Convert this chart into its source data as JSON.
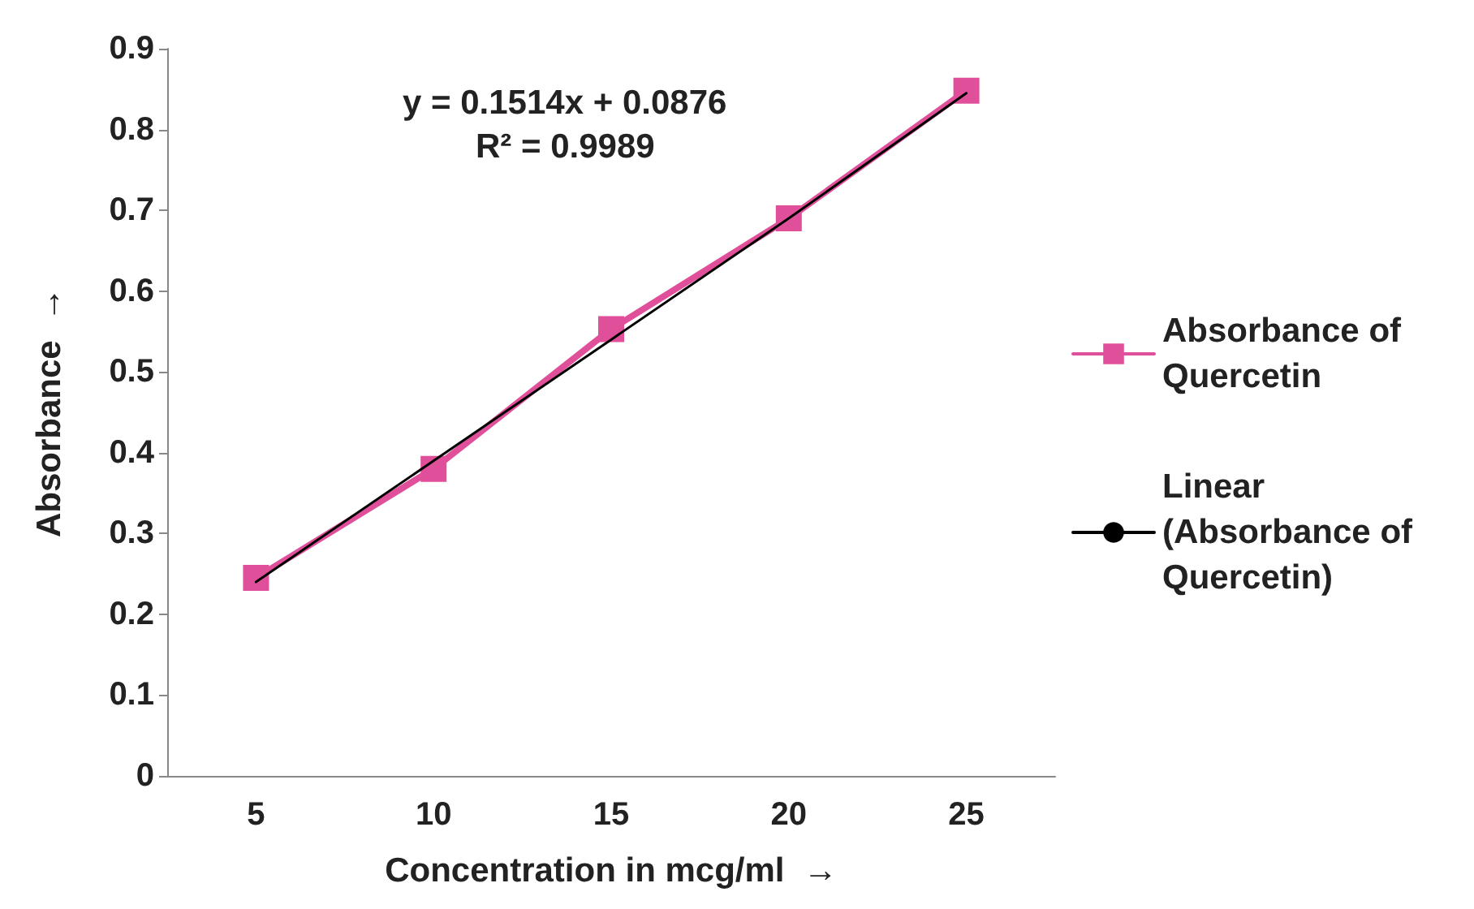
{
  "chart_data": {
    "type": "line",
    "xlabel": "Concentration in mcg/ml  →",
    "ylabel": "Absorbance  →",
    "categories": [
      "5",
      "10",
      "15",
      "20",
      "25"
    ],
    "series": [
      {
        "name": "Absorbance of Quercetin",
        "color": "#e0509a",
        "values": [
          0.245,
          0.38,
          0.553,
          0.69,
          0.848
        ],
        "marker": "square"
      },
      {
        "name": "Linear (Absorbance of Quercetin)",
        "color": "#000000",
        "values": [
          0.24,
          0.39,
          0.54,
          0.69,
          0.845
        ],
        "marker": "none"
      }
    ],
    "ylim": [
      0,
      0.9
    ],
    "yticks": [
      0,
      0.1,
      0.2,
      0.3,
      0.4,
      0.5,
      0.6,
      0.7,
      0.8,
      0.9
    ],
    "grid": false,
    "legend": "right",
    "annotations": [
      "y = 0.1514x + 0.0876",
      "R² = 0.9989"
    ]
  }
}
